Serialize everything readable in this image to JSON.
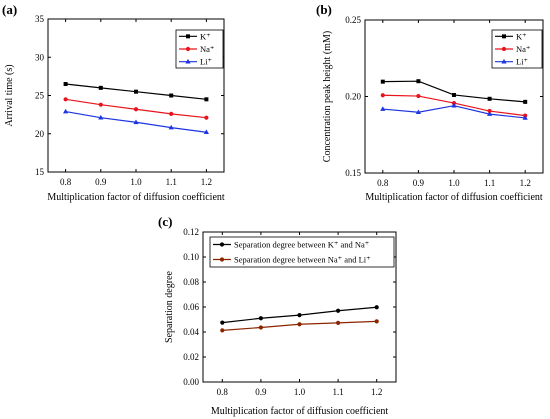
{
  "colors": {
    "K": "#000000",
    "Na": "#e8141c",
    "Li": "#1d35e0",
    "Na_brown": "#8b2500"
  },
  "chart_data": [
    {
      "panel": "(a)",
      "type": "line",
      "x": [
        0.8,
        0.9,
        1.0,
        1.1,
        1.2
      ],
      "xlim": [
        0.75,
        1.25
      ],
      "ylim": [
        15,
        35
      ],
      "xticks": [
        "0.8",
        "0.9",
        "1.0",
        "1.1",
        "1.2"
      ],
      "yticks": [
        "15",
        "20",
        "25",
        "30",
        "35"
      ],
      "xlabel": "Multiplication factor of diffusion coefficient",
      "ylabel": "Arrival time (s)",
      "legend_position": "top-right",
      "series": [
        {
          "name": "K⁺",
          "marker": "square",
          "color": "#000000",
          "values": [
            26.5,
            26.0,
            25.5,
            25.0,
            24.5
          ]
        },
        {
          "name": "Na⁺",
          "marker": "circle",
          "color": "#e8141c",
          "values": [
            24.5,
            23.8,
            23.2,
            22.6,
            22.1
          ]
        },
        {
          "name": "Li⁺",
          "marker": "triangle",
          "color": "#1d35e0",
          "values": [
            22.9,
            22.1,
            21.5,
            20.8,
            20.2
          ]
        }
      ]
    },
    {
      "panel": "(b)",
      "type": "line",
      "x": [
        0.8,
        0.9,
        1.0,
        1.1,
        1.2
      ],
      "xlim": [
        0.75,
        1.25
      ],
      "ylim": [
        0.15,
        0.25
      ],
      "xticks": [
        "0.8",
        "0.9",
        "1.0",
        "1.1",
        "1.2"
      ],
      "yticks": [
        "0.15",
        "0.20",
        "0.25"
      ],
      "xlabel": "Multiplication factor of diffusion coefficient",
      "ylabel": "Concentration peak height (mM)",
      "legend_position": "top-right",
      "series": [
        {
          "name": "K⁺",
          "marker": "square",
          "color": "#000000",
          "values": [
            0.2097,
            0.21,
            0.201,
            0.1985,
            0.1965
          ]
        },
        {
          "name": "Na⁺",
          "marker": "circle",
          "color": "#e8141c",
          "values": [
            0.2008,
            0.2003,
            0.1957,
            0.1905,
            0.1875
          ]
        },
        {
          "name": "Li⁺",
          "marker": "triangle",
          "color": "#1d35e0",
          "values": [
            0.1918,
            0.1897,
            0.194,
            0.1885,
            0.186
          ]
        }
      ]
    },
    {
      "panel": "(c)",
      "type": "line",
      "x": [
        0.8,
        0.9,
        1.0,
        1.1,
        1.2
      ],
      "xlim": [
        0.75,
        1.25
      ],
      "ylim": [
        0.0,
        0.12
      ],
      "xticks": [
        "0.8",
        "0.9",
        "1.0",
        "1.1",
        "1.2"
      ],
      "yticks": [
        "0.00",
        "0.02",
        "0.04",
        "0.06",
        "0.08",
        "0.10",
        "0.12"
      ],
      "xlabel": "Multiplication factor of diffusion coefficient",
      "ylabel": "Separation degree",
      "legend_position": "top-left",
      "series": [
        {
          "name": "Separation degree between  K⁺  and  Na⁺",
          "marker": "circle",
          "color": "#000000",
          "values": [
            0.0475,
            0.051,
            0.0535,
            0.057,
            0.0598
          ]
        },
        {
          "name": "Separation degree between  Na⁺  and  Li⁺",
          "marker": "circle",
          "color": "#8b2500",
          "values": [
            0.0413,
            0.0436,
            0.0462,
            0.0473,
            0.0485
          ]
        }
      ]
    }
  ]
}
